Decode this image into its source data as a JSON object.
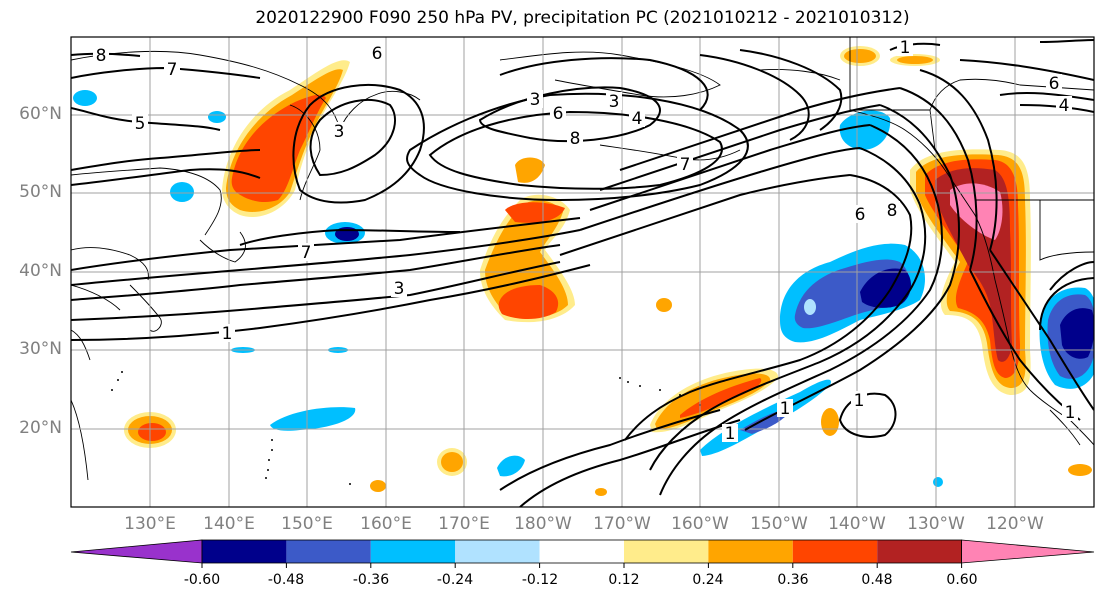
{
  "title": "2020122900 F090 250 hPa PV, precipitation PC (2021010212 - 2021010312)",
  "lat_labels": [
    "60°N",
    "50°N",
    "40°N",
    "30°N",
    "20°N"
  ],
  "lon_labels": [
    "130°E",
    "140°E",
    "150°E",
    "160°E",
    "170°E",
    "180°W",
    "170°W",
    "160°W",
    "150°W",
    "140°W",
    "130°W",
    "120°W"
  ],
  "colorbar": {
    "tick_labels": [
      "-0.60",
      "-0.48",
      "-0.36",
      "-0.24",
      "-0.12",
      "0.12",
      "0.24",
      "0.36",
      "0.48",
      "0.60"
    ],
    "colors": [
      "#9932CC",
      "#00008B",
      "#3C5AC8",
      "#00BFFF",
      "#B0E2FF",
      "#FFFFFF",
      "#FFEC8B",
      "#FFA500",
      "#FF4500",
      "#B22222",
      "#FF83B4"
    ]
  },
  "contour_labels": [
    "8",
    "7",
    "5",
    "6",
    "3",
    "3",
    "3",
    "6",
    "8",
    "4",
    "7",
    "7",
    "3",
    "1",
    "8",
    "6",
    "1",
    "6",
    "4",
    "1",
    "1",
    "1",
    "1"
  ],
  "colors": {
    "grid": "#a0a0a0",
    "contour": "#000000",
    "coast": "#000000"
  }
}
